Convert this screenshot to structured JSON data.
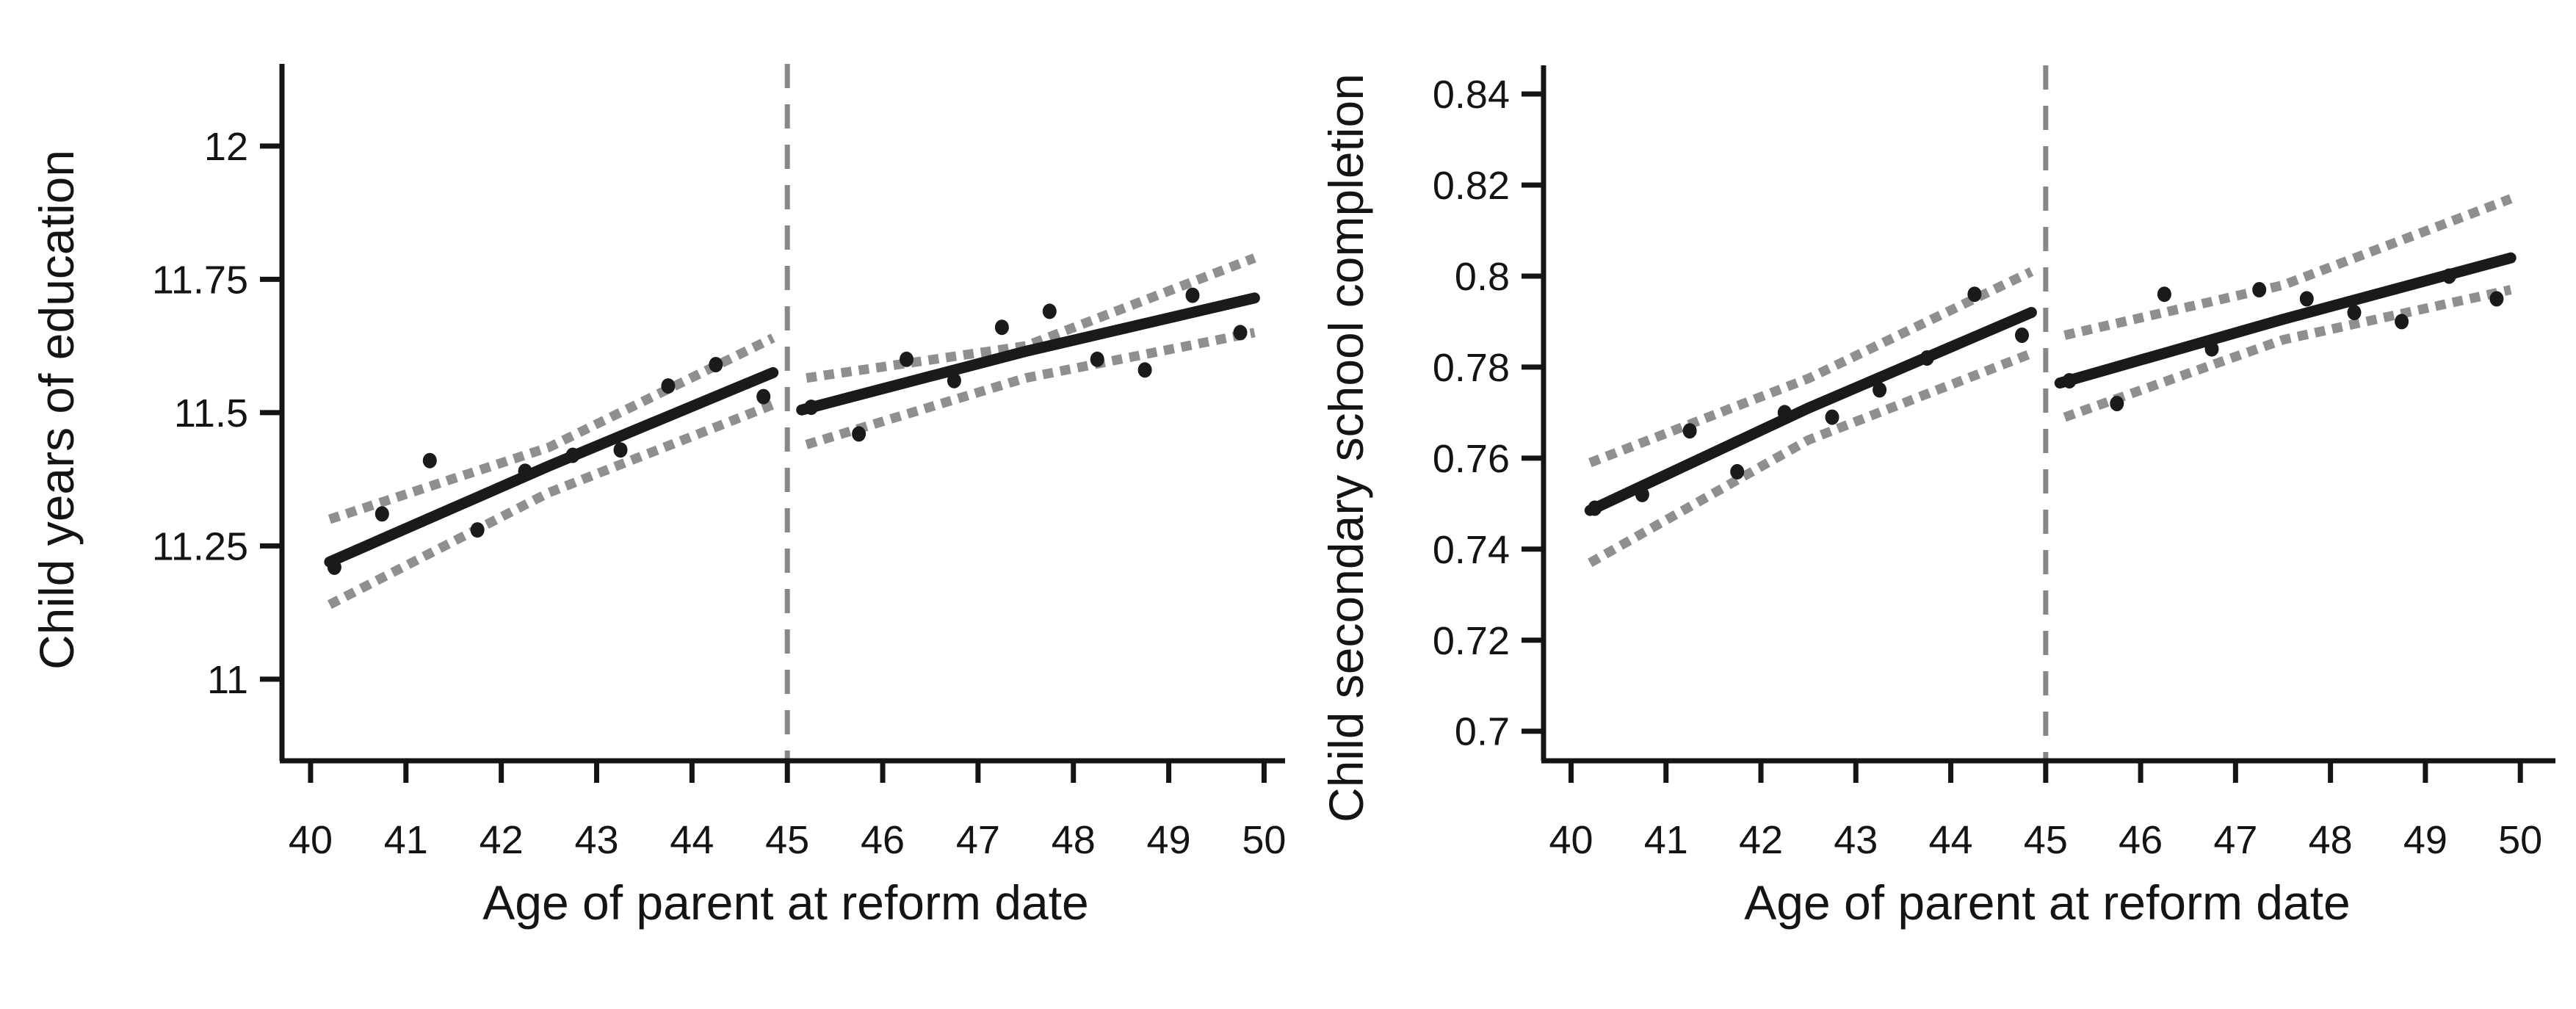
{
  "figure": {
    "description": "Two-panel regression discontinuity plots of child outcomes by age of parent at reform date, cutoff at age 45",
    "background_color": "#ffffff",
    "accent_colors": {
      "line": "#1a1a1a",
      "confidence_band": "#8f8f8f",
      "cutoff_line": "#878787",
      "point": "#1a1a1a"
    }
  },
  "chart_data": [
    {
      "type": "scatter",
      "title": "",
      "xlabel": "Age of parent at reform date",
      "ylabel": "Child years of education",
      "xlim": [
        39.7,
        50.22
      ],
      "ylim": [
        10.847,
        12.154
      ],
      "grid": false,
      "legend": "none",
      "cutoff_x": 45,
      "x_ticks": [
        {
          "value": 40,
          "label": "40"
        },
        {
          "value": 41,
          "label": "41"
        },
        {
          "value": 42,
          "label": "42"
        },
        {
          "value": 43,
          "label": "43"
        },
        {
          "value": 44,
          "label": "44"
        },
        {
          "value": 45,
          "label": "45"
        },
        {
          "value": 46,
          "label": "46"
        },
        {
          "value": 47,
          "label": "47"
        },
        {
          "value": 48,
          "label": "48"
        },
        {
          "value": 49,
          "label": "49"
        },
        {
          "value": 50,
          "label": "50"
        }
      ],
      "y_ticks": [
        {
          "value": 12,
          "label": "12"
        },
        {
          "value": 11.75,
          "label": "11.75"
        },
        {
          "value": 11.5,
          "label": "11.5"
        },
        {
          "value": 11.25,
          "label": "11.25"
        },
        {
          "value": 11,
          "label": "11"
        }
      ],
      "segments": [
        {
          "name": "pre-cutoff",
          "points_x": [
            40.25,
            40.75,
            41.25,
            41.75,
            42.25,
            42.75,
            43.25,
            43.75,
            44.25,
            44.75
          ],
          "points_y": [
            11.21,
            11.31,
            11.41,
            11.28,
            11.39,
            11.42,
            11.43,
            11.55,
            11.59,
            11.53
          ],
          "fit": [
            [
              40.2,
              11.22
            ],
            [
              42.5,
              11.4
            ],
            [
              44.85,
              11.575
            ]
          ],
          "ci_upper": [
            [
              40.2,
              11.3
            ],
            [
              42.5,
              11.435
            ],
            [
              44.85,
              11.64
            ]
          ],
          "ci_lower": [
            [
              40.2,
              11.14
            ],
            [
              42.5,
              11.35
            ],
            [
              44.85,
              11.515
            ]
          ]
        },
        {
          "name": "post-cutoff",
          "points_x": [
            45.25,
            45.75,
            46.25,
            46.75,
            47.25,
            47.75,
            48.25,
            48.75,
            49.25,
            49.75
          ],
          "points_y": [
            11.51,
            11.46,
            11.6,
            11.56,
            11.66,
            11.69,
            11.6,
            11.58,
            11.72,
            11.65
          ],
          "fit": [
            [
              45.15,
              11.505
            ],
            [
              47.5,
              11.615
            ],
            [
              49.9,
              11.715
            ]
          ],
          "ci_upper": [
            [
              45.2,
              11.565
            ],
            [
              47.5,
              11.625
            ],
            [
              49.9,
              11.79
            ]
          ],
          "ci_lower": [
            [
              45.2,
              11.44
            ],
            [
              47.5,
              11.565
            ],
            [
              49.9,
              11.65
            ]
          ]
        }
      ]
    },
    {
      "type": "scatter",
      "title": "",
      "xlabel": "Age of parent at reform date",
      "ylabel": "Child secondary school completion",
      "xlim": [
        39.71,
        50.37
      ],
      "ylim": [
        0.6935,
        0.8463
      ],
      "grid": false,
      "legend": "none",
      "cutoff_x": 45,
      "x_ticks": [
        {
          "value": 40,
          "label": "40"
        },
        {
          "value": 41,
          "label": "41"
        },
        {
          "value": 42,
          "label": "42"
        },
        {
          "value": 43,
          "label": "43"
        },
        {
          "value": 44,
          "label": "44"
        },
        {
          "value": 45,
          "label": "45"
        },
        {
          "value": 46,
          "label": "46"
        },
        {
          "value": 47,
          "label": "47"
        },
        {
          "value": 48,
          "label": "48"
        },
        {
          "value": 49,
          "label": "49"
        },
        {
          "value": 50,
          "label": "50"
        }
      ],
      "y_ticks": [
        {
          "value": 0.84,
          "label": "0.84"
        },
        {
          "value": 0.82,
          "label": "0.82"
        },
        {
          "value": 0.8,
          "label": "0.8"
        },
        {
          "value": 0.78,
          "label": "0.78"
        },
        {
          "value": 0.76,
          "label": "0.76"
        },
        {
          "value": 0.74,
          "label": "0.74"
        },
        {
          "value": 0.72,
          "label": "0.72"
        },
        {
          "value": 0.7,
          "label": "0.7"
        }
      ],
      "segments": [
        {
          "name": "pre-cutoff",
          "points_x": [
            40.25,
            40.75,
            41.25,
            41.75,
            42.25,
            42.75,
            43.25,
            43.75,
            44.25,
            44.75
          ],
          "points_y": [
            0.749,
            0.752,
            0.766,
            0.757,
            0.77,
            0.769,
            0.775,
            0.782,
            0.796,
            0.787
          ],
          "fit": [
            [
              40.2,
              0.7485
            ],
            [
              42.5,
              0.771
            ],
            [
              44.85,
              0.792
            ]
          ],
          "ci_upper": [
            [
              40.2,
              0.759
            ],
            [
              42.5,
              0.7775
            ],
            [
              44.85,
              0.801
            ]
          ],
          "ci_lower": [
            [
              40.2,
              0.737
            ],
            [
              42.5,
              0.764
            ],
            [
              44.85,
              0.783
            ]
          ]
        },
        {
          "name": "post-cutoff",
          "points_x": [
            45.25,
            45.75,
            46.25,
            46.75,
            47.25,
            47.75,
            48.25,
            48.75,
            49.25,
            49.75
          ],
          "points_y": [
            0.777,
            0.772,
            0.796,
            0.784,
            0.797,
            0.795,
            0.792,
            0.79,
            0.8,
            0.795
          ],
          "fit": [
            [
              45.15,
              0.7765
            ],
            [
              47.5,
              0.7905
            ],
            [
              49.9,
              0.804
            ]
          ],
          "ci_upper": [
            [
              45.2,
              0.787
            ],
            [
              47.5,
              0.798
            ],
            [
              49.9,
              0.817
            ]
          ],
          "ci_lower": [
            [
              45.2,
              0.769
            ],
            [
              47.5,
              0.786
            ],
            [
              49.9,
              0.797
            ]
          ]
        }
      ]
    }
  ]
}
